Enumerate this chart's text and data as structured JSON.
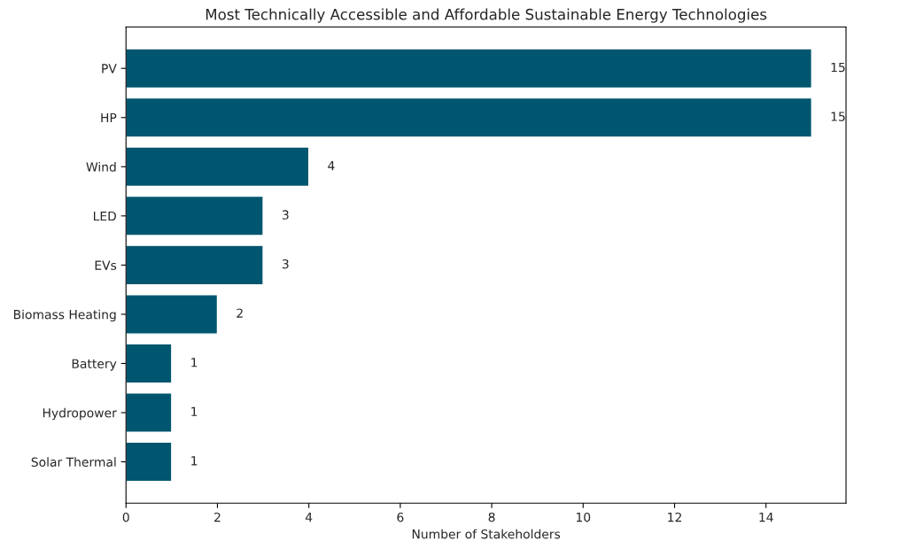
{
  "chart_data": {
    "type": "bar",
    "orientation": "horizontal",
    "title": "Most Technically Accessible and Affordable Sustainable Energy Technologies",
    "xlabel": "Number of Stakeholders",
    "categories": [
      "PV",
      "HP",
      "Wind",
      "LED",
      "EVs",
      "Biomass Heating",
      "Battery",
      "Hydropower",
      "Solar Thermal"
    ],
    "values": [
      15,
      15,
      4,
      3,
      3,
      2,
      1,
      1,
      1
    ],
    "color": "#00566f",
    "xlim": [
      0,
      15.75
    ],
    "xticks": [
      0,
      2,
      4,
      6,
      8,
      10,
      12,
      14
    ],
    "data_labels": true,
    "grid": false
  }
}
